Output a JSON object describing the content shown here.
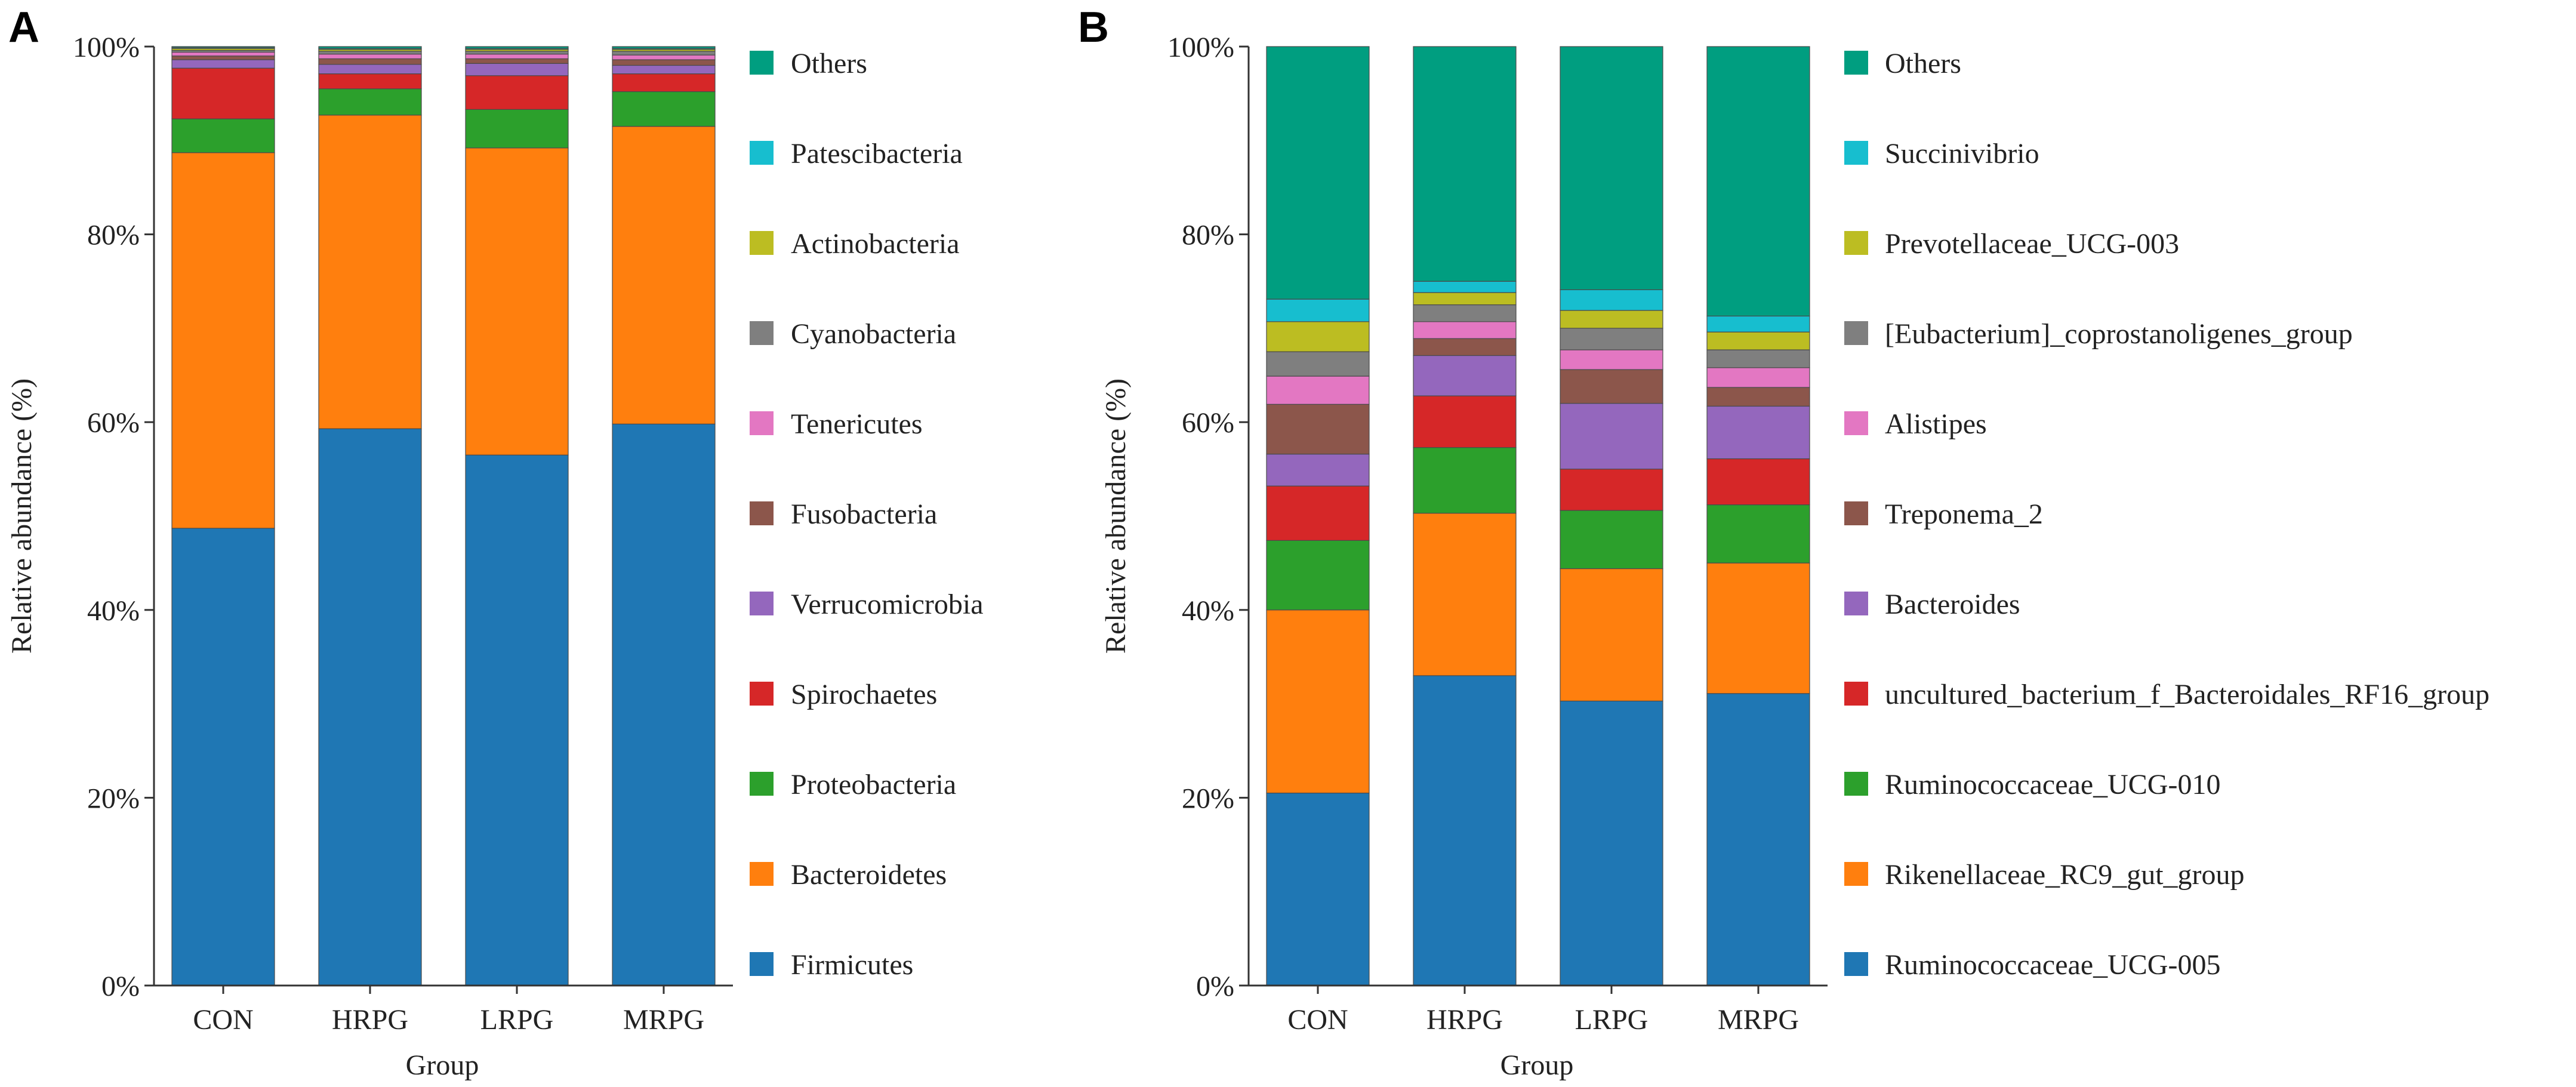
{
  "chart_data": [
    {
      "panel_label": "A",
      "type": "bar",
      "stacked": true,
      "title": "",
      "xlabel": "Group",
      "ylabel": "Relative abundance (%)",
      "ylim": [
        0,
        100
      ],
      "yticks": [
        "0%",
        "20%",
        "40%",
        "60%",
        "80%",
        "100%"
      ],
      "categories": [
        "CON",
        "HRPG",
        "LRPG",
        "MRPG"
      ],
      "series": [
        {
          "name": "Firmicutes",
          "color": "#1f77b4",
          "values": [
            48.7,
            59.3,
            56.5,
            59.8
          ]
        },
        {
          "name": "Bacteroidetes",
          "color": "#ff7f0e",
          "values": [
            40.0,
            33.4,
            32.7,
            31.7
          ]
        },
        {
          "name": "Proteobacteria",
          "color": "#2ca02c",
          "values": [
            3.6,
            2.8,
            4.1,
            3.7
          ]
        },
        {
          "name": "Spirochaetes",
          "color": "#d62728",
          "values": [
            5.4,
            1.6,
            3.6,
            1.9
          ]
        },
        {
          "name": "Verrucomicrobia",
          "color": "#9467bd",
          "values": [
            0.9,
            1.0,
            1.3,
            0.9
          ]
        },
        {
          "name": "Fusobacteria",
          "color": "#8c564b",
          "values": [
            0.4,
            0.6,
            0.5,
            0.6
          ]
        },
        {
          "name": "Tenericutes",
          "color": "#e377c2",
          "values": [
            0.4,
            0.5,
            0.5,
            0.5
          ]
        },
        {
          "name": "Cyanobacteria",
          "color": "#7f7f7f",
          "values": [
            0.2,
            0.3,
            0.3,
            0.4
          ]
        },
        {
          "name": "Actinobacteria",
          "color": "#bcbd22",
          "values": [
            0.2,
            0.2,
            0.2,
            0.2
          ]
        },
        {
          "name": "Patescibacteria",
          "color": "#17becf",
          "values": [
            0.1,
            0.1,
            0.1,
            0.1
          ]
        },
        {
          "name": "Others",
          "color": "#009e80",
          "values": [
            0.1,
            0.2,
            0.2,
            0.2
          ]
        }
      ]
    },
    {
      "panel_label": "B",
      "type": "bar",
      "stacked": true,
      "title": "",
      "xlabel": "Group",
      "ylabel": "Relative abundance (%)",
      "ylim": [
        0,
        100
      ],
      "yticks": [
        "0%",
        "20%",
        "40%",
        "60%",
        "80%",
        "100%"
      ],
      "categories": [
        "CON",
        "HRPG",
        "LRPG",
        "MRPG"
      ],
      "series": [
        {
          "name": "Ruminococcaceae_UCG-005",
          "color": "#1f77b4",
          "values": [
            20.5,
            33.0,
            30.3,
            31.1
          ]
        },
        {
          "name": "Rikenellaceae_RC9_gut_group",
          "color": "#ff7f0e",
          "values": [
            19.5,
            17.3,
            14.1,
            13.9
          ]
        },
        {
          "name": "Ruminococcaceae_UCG-010",
          "color": "#2ca02c",
          "values": [
            7.4,
            7.0,
            6.2,
            6.2
          ]
        },
        {
          "name": "uncultured_bacterium_f_Bacteroidales_RF16_group",
          "color": "#d62728",
          "values": [
            5.8,
            5.5,
            4.4,
            4.9
          ]
        },
        {
          "name": "Bacteroides",
          "color": "#9467bd",
          "values": [
            3.4,
            4.3,
            7.0,
            5.6
          ]
        },
        {
          "name": "Treponema_2",
          "color": "#8c564b",
          "values": [
            5.3,
            1.8,
            3.6,
            2.0
          ]
        },
        {
          "name": "Alistipes",
          "color": "#e377c2",
          "values": [
            3.0,
            1.8,
            2.1,
            2.1
          ]
        },
        {
          "name": "[Eubacterium]_coprostanoligenes_group",
          "color": "#7f7f7f",
          "values": [
            2.6,
            1.8,
            2.3,
            1.9
          ]
        },
        {
          "name": "Prevotellaceae_UCG-003",
          "color": "#bcbd22",
          "values": [
            3.2,
            1.3,
            1.9,
            1.9
          ]
        },
        {
          "name": "Succinivibrio",
          "color": "#17becf",
          "values": [
            2.4,
            1.2,
            2.2,
            1.7
          ]
        },
        {
          "name": "Others",
          "color": "#009e80",
          "values": [
            26.9,
            25.0,
            25.9,
            28.7
          ]
        }
      ]
    }
  ]
}
